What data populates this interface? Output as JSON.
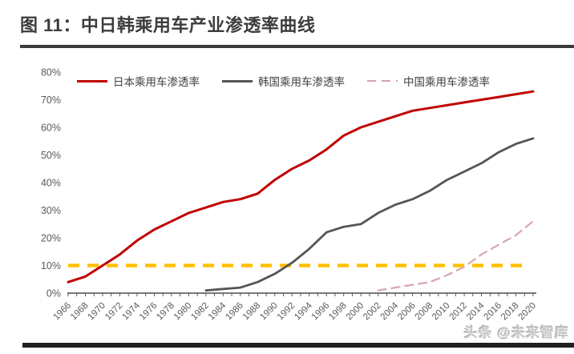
{
  "header": {
    "title": "图 11：中日韩乘用车产业渗透率曲线"
  },
  "watermark": {
    "text": "头条 @未来智库"
  },
  "colors": {
    "japan_line": "#C00000",
    "korea_line": "#555555",
    "china_line": "#D5A6AD",
    "threshold_line": "#FFC000",
    "axis": "#4d4d4d",
    "tick_label": "#595959",
    "title_text": "#3c3c3c",
    "rule_bar": "#3a3a3a"
  },
  "chart_data": {
    "type": "line",
    "x": [
      1966,
      1968,
      1970,
      1972,
      1974,
      1976,
      1978,
      1980,
      1982,
      1984,
      1986,
      1988,
      1990,
      1992,
      1994,
      1996,
      1998,
      2000,
      2002,
      2004,
      2006,
      2008,
      2010,
      2012,
      2014,
      2016,
      2018,
      2020
    ],
    "series": [
      {
        "name": "日本乘用车渗透率",
        "color": "#C00000",
        "style": "solid",
        "values": [
          4,
          6,
          10,
          14,
          19,
          23,
          26,
          29,
          31,
          33,
          34,
          36,
          41,
          45,
          48,
          52,
          57,
          60,
          62,
          64,
          66,
          67,
          68,
          69,
          70,
          71,
          72,
          73
        ]
      },
      {
        "name": "韩国乘用车渗透率",
        "color": "#555555",
        "style": "solid",
        "values": [
          null,
          null,
          null,
          null,
          null,
          null,
          null,
          null,
          1,
          1.5,
          2,
          4,
          7,
          11,
          16,
          22,
          24,
          25,
          29,
          32,
          34,
          37,
          41,
          44,
          47,
          51,
          54,
          56
        ]
      },
      {
        "name": "中国乘用车渗透率",
        "color": "#D5A6AD",
        "style": "dashed",
        "values": [
          null,
          null,
          null,
          null,
          null,
          null,
          null,
          null,
          null,
          null,
          null,
          null,
          null,
          null,
          null,
          null,
          null,
          null,
          1,
          2,
          3,
          4,
          6.5,
          9.5,
          14,
          17.5,
          21,
          26
        ]
      }
    ],
    "threshold_line": {
      "value": 10,
      "color": "#FFC000",
      "style": "dashed"
    },
    "title": "",
    "xlabel": "",
    "ylabel": "",
    "ylim": [
      0,
      80
    ],
    "y_tick_step": 10,
    "y_tick_suffix": "%",
    "x_tick_step_years": 2,
    "minor_tick_step_years": 1,
    "legend_position": "top",
    "grid": false
  }
}
